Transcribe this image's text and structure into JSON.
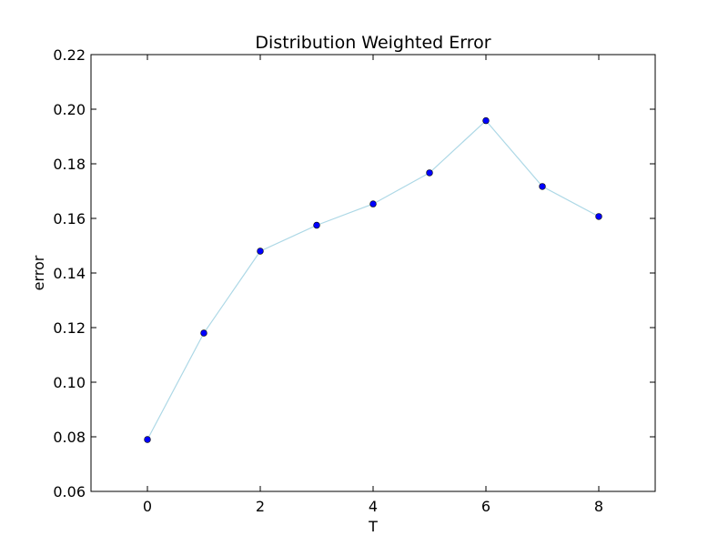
{
  "chart_data": {
    "type": "line",
    "title": "Distribution Weighted Error",
    "xlabel": "T",
    "ylabel": "error",
    "x": [
      0,
      1,
      2,
      3,
      4,
      5,
      6,
      7,
      8
    ],
    "series": [
      {
        "values": [
          0.079,
          0.118,
          0.148,
          0.1575,
          0.1653,
          0.1767,
          0.1958,
          0.1717,
          0.1607
        ],
        "line_color": "#add8e6",
        "marker_color": "#0000ff"
      }
    ],
    "xlim": [
      -1,
      9
    ],
    "ylim": [
      0.06,
      0.22
    ],
    "xticks": [
      "0",
      "2",
      "4",
      "6",
      "8"
    ],
    "yticks": [
      "0.06",
      "0.08",
      "0.10",
      "0.12",
      "0.14",
      "0.16",
      "0.18",
      "0.20",
      "0.22"
    ],
    "grid": false,
    "legend": "none"
  }
}
